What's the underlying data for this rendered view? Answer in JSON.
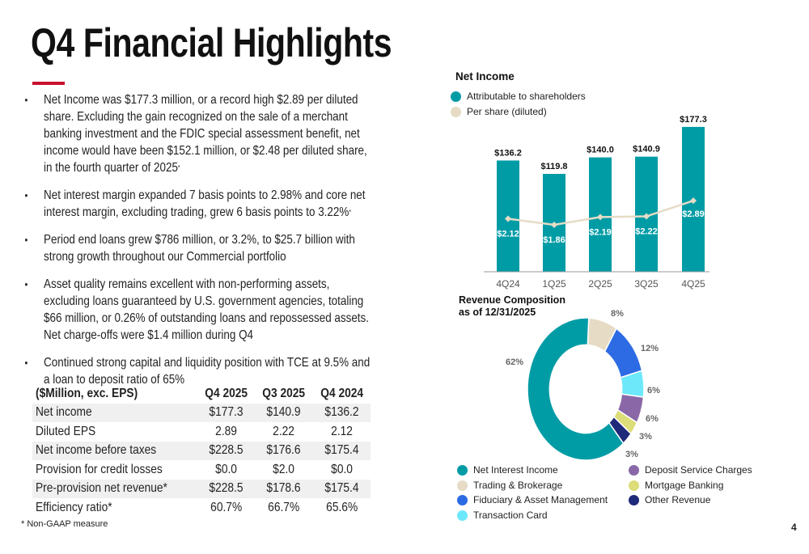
{
  "title": "Q4 Financial Highlights",
  "bullets": [
    "Net Income was $177.3 million, or a record high $2.89 per diluted share. Excluding the gain recognized on the sale of a merchant banking investment and the FDIC special assessment benefit, net income would have been $152.1 million, or $2.48 per diluted share, in the fourth quarter of 2025",
    "Net interest margin expanded 7 basis points to 2.98% and core net interest margin, excluding trading, grew 6 basis points to 3.22%",
    "Period end loans grew $786 million, or 3.2%, to $25.7 billion with strong growth throughout our Commercial portfolio",
    "Asset quality remains excellent with non-performing assets, excluding loans guaranteed by U.S. government agencies, totaling $66 million, or 0.26% of outstanding loans and repossessed assets. Net charge-offs were $1.4 million during Q4",
    "Continued strong capital and liquidity position with TCE at 9.5% and a loan to deposit ratio of 65%"
  ],
  "footnote_mark": "*",
  "table": {
    "headers": [
      "($Million, exc. EPS)",
      "Q4 2025",
      "Q3 2025",
      "Q4 2024"
    ],
    "rows": [
      [
        "Net income",
        "$177.3",
        "$140.9",
        "$136.2"
      ],
      [
        "Diluted EPS",
        "2.89",
        "2.22",
        "2.12"
      ],
      [
        "Net income before taxes",
        "$228.5",
        "$176.6",
        "$175.4"
      ],
      [
        "Provision for credit losses",
        "$0.0",
        "$2.0",
        "$0.0"
      ],
      [
        "Pre-provision net revenue*",
        "$228.5",
        "$178.6",
        "$175.4"
      ],
      [
        "Efficiency ratio*",
        "60.7%",
        "66.7%",
        "65.6%"
      ]
    ]
  },
  "footnote": "*  Non-GAAP measure",
  "page_number": "4",
  "chart_data": [
    {
      "type": "bar",
      "title": "Net Income",
      "categories": [
        "4Q24",
        "1Q25",
        "2Q25",
        "3Q25",
        "4Q25"
      ],
      "series": [
        {
          "name": "Attributable to shareholders",
          "type": "bar",
          "values": [
            136.2,
            119.8,
            140.0,
            140.9,
            177.3
          ],
          "labels": [
            "$136.2",
            "$119.8",
            "$140.0",
            "$140.9",
            "$177.3"
          ],
          "color": "#009ca6"
        },
        {
          "name": "Per share (diluted)",
          "type": "line",
          "values": [
            2.12,
            1.86,
            2.19,
            2.22,
            2.89
          ],
          "labels": [
            "$2.12",
            "$1.86",
            "$2.19",
            "$2.22",
            "$2.89"
          ],
          "color": "#e6dcc6"
        }
      ],
      "grid": false,
      "legend": "top-left"
    },
    {
      "type": "pie",
      "title": "Revenue Composition",
      "subtitle": "as of 12/31/2025",
      "donut": true,
      "slices": [
        {
          "name": "Trading & Brokerage",
          "value": 8,
          "label": "8%",
          "color": "#e6dcc6"
        },
        {
          "name": "Fiduciary & Asset Management",
          "value": 12,
          "label": "12%",
          "color": "#2d6be4"
        },
        {
          "name": "Transaction Card",
          "value": 6,
          "label": "6%",
          "color": "#6de8fb"
        },
        {
          "name": "Deposit Service Charges",
          "value": 6,
          "label": "6%",
          "color": "#8a68a8"
        },
        {
          "name": "Mortgage Banking",
          "value": 3,
          "label": "3%",
          "color": "#dcdc78"
        },
        {
          "name": "Other Revenue",
          "value": 3,
          "label": "3%",
          "color": "#1f2a7a"
        },
        {
          "name": "Net Interest Income",
          "value": 62,
          "label": "62%",
          "color": "#009ca6"
        }
      ],
      "legend_order": [
        "Net Interest Income",
        "Trading & Brokerage",
        "Fiduciary & Asset Management",
        "Transaction Card",
        "Deposit Service Charges",
        "Mortgage Banking",
        "Other Revenue"
      ],
      "legend": "bottom"
    }
  ]
}
